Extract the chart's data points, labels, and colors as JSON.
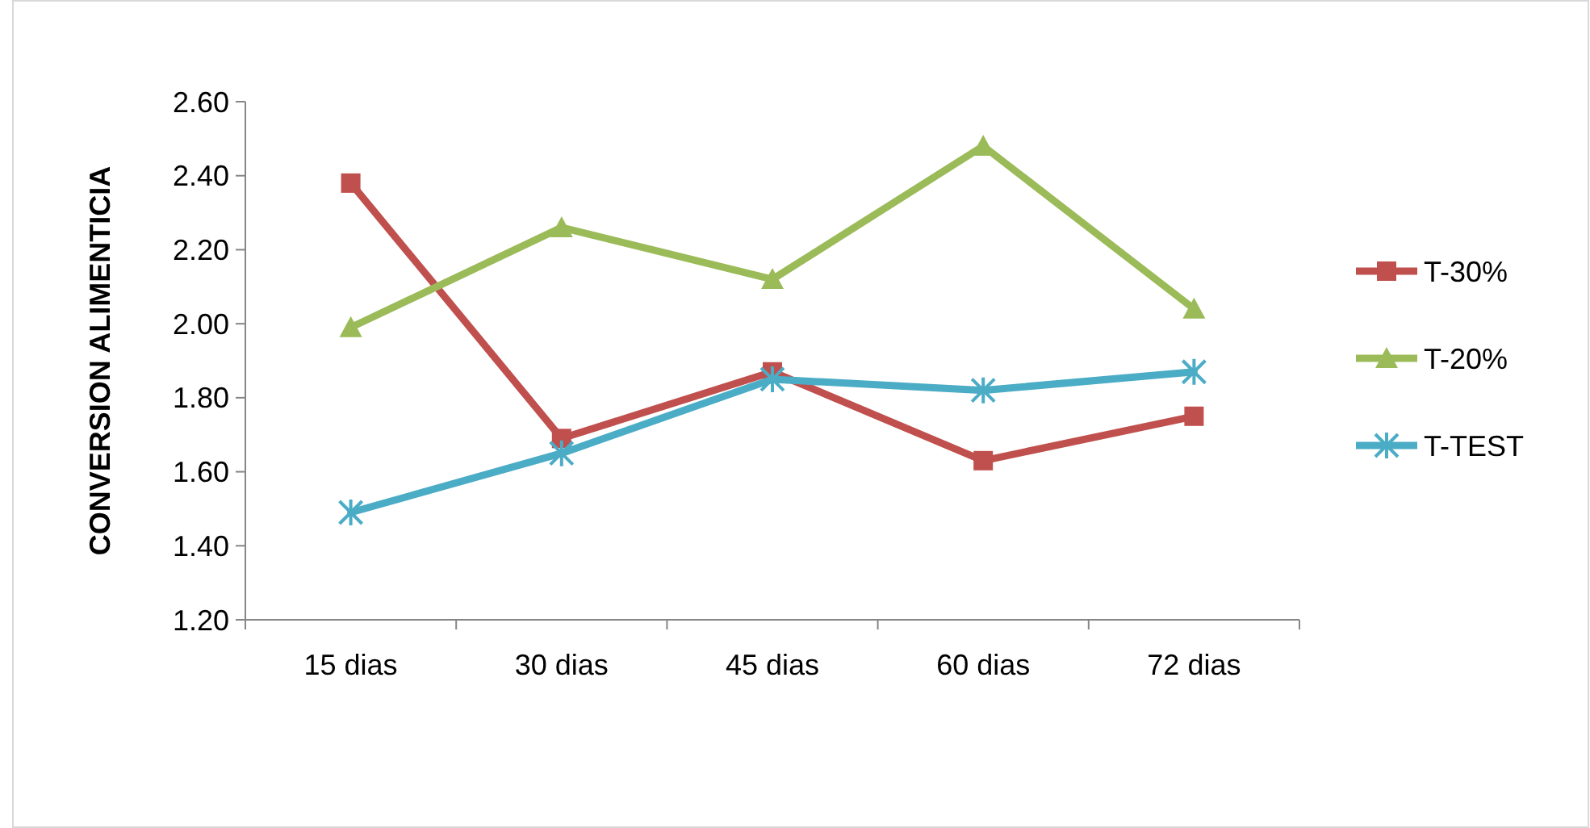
{
  "chart_data": {
    "type": "line",
    "ylabel": "CONVERSION ALIMENTICIA",
    "categories": [
      "15 dias",
      "30 dias",
      "45 dias",
      "60 dias",
      "72 dias"
    ],
    "series": [
      {
        "name": "T-30%",
        "color": "#c0504d",
        "marker": "square",
        "values": [
          2.38,
          1.69,
          1.87,
          1.63,
          1.75
        ]
      },
      {
        "name": "T-20%",
        "color": "#9bbb59",
        "marker": "triangle",
        "values": [
          1.99,
          2.26,
          2.12,
          2.48,
          2.04
        ]
      },
      {
        "name": "T-TEST",
        "color": "#4bacc6",
        "marker": "cross",
        "values": [
          1.49,
          1.65,
          1.85,
          1.82,
          1.87
        ]
      }
    ],
    "ylim": [
      1.2,
      2.6
    ],
    "yticks": [
      {
        "value": 1.2,
        "label": "1.20"
      },
      {
        "value": 1.4,
        "label": "1.40"
      },
      {
        "value": 1.6,
        "label": "1.60"
      },
      {
        "value": 1.8,
        "label": "1.80"
      },
      {
        "value": 2.0,
        "label": "2.00"
      },
      {
        "value": 2.2,
        "label": "2.20"
      },
      {
        "value": 2.4,
        "label": "2.40"
      },
      {
        "value": 2.6,
        "label": "2.60"
      }
    ],
    "grid": false,
    "legend": "right"
  }
}
